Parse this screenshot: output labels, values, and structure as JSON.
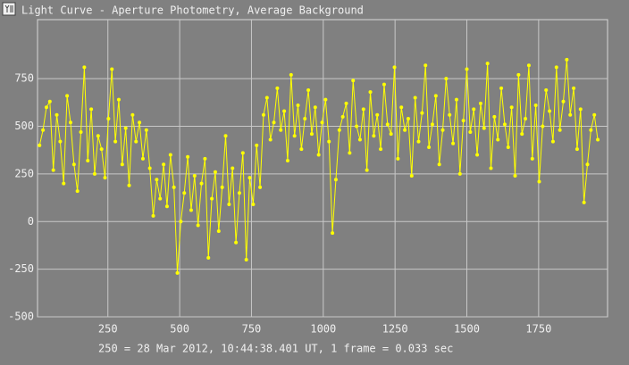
{
  "chart_data": {
    "type": "line",
    "title": "Light Curve - Aperture Photometry, Average Background",
    "annotation": "250 = 28 Mar 2012, 10:44:38.401 UT, 1 frame = 0.033 sec",
    "x": [
      12,
      24,
      36,
      48,
      60,
      72,
      84,
      96,
      108,
      120,
      132,
      144,
      156,
      168,
      180,
      192,
      204,
      216,
      228,
      240,
      252,
      264,
      276,
      288,
      300,
      312,
      324,
      336,
      348,
      360,
      372,
      384,
      396,
      408,
      420,
      432,
      444,
      456,
      468,
      480,
      492,
      504,
      516,
      528,
      540,
      552,
      564,
      576,
      588,
      600,
      612,
      624,
      636,
      648,
      660,
      672,
      684,
      696,
      708,
      720,
      732,
      744,
      756,
      768,
      780,
      792,
      804,
      816,
      828,
      840,
      852,
      864,
      876,
      888,
      900,
      912,
      924,
      936,
      948,
      960,
      972,
      984,
      996,
      1008,
      1020,
      1032,
      1044,
      1056,
      1068,
      1080,
      1092,
      1104,
      1116,
      1128,
      1140,
      1152,
      1164,
      1176,
      1188,
      1200,
      1212,
      1224,
      1236,
      1248,
      1260,
      1272,
      1284,
      1296,
      1308,
      1320,
      1332,
      1344,
      1356,
      1368,
      1380,
      1392,
      1404,
      1416,
      1428,
      1440,
      1452,
      1464,
      1476,
      1488,
      1500,
      1512,
      1524,
      1536,
      1548,
      1560,
      1572,
      1584,
      1596,
      1608,
      1620,
      1632,
      1644,
      1656,
      1668,
      1680,
      1692,
      1704,
      1716,
      1728,
      1740,
      1752,
      1764,
      1776,
      1788,
      1800,
      1812,
      1824,
      1836,
      1848,
      1860,
      1872,
      1884,
      1896,
      1908,
      1920,
      1932,
      1944,
      1956
    ],
    "series": [
      {
        "color": "#ffff00",
        "values": [
          400,
          480,
          600,
          630,
          270,
          560,
          420,
          200,
          660,
          520,
          300,
          160,
          470,
          810,
          320,
          590,
          250,
          450,
          380,
          230,
          540,
          800,
          420,
          640,
          300,
          490,
          190,
          560,
          420,
          520,
          330,
          480,
          280,
          30,
          220,
          120,
          300,
          80,
          350,
          180,
          -270,
          0,
          150,
          340,
          60,
          240,
          -20,
          200,
          330,
          -190,
          120,
          260,
          -50,
          180,
          450,
          90,
          280,
          -110,
          150,
          360,
          -200,
          230,
          90,
          400,
          180,
          560,
          650,
          430,
          520,
          700,
          480,
          580,
          320,
          770,
          450,
          610,
          380,
          540,
          690,
          460,
          600,
          350,
          520,
          640,
          420,
          -60,
          220,
          480,
          550,
          620,
          360,
          740,
          500,
          430,
          590,
          270,
          680,
          450,
          560,
          380,
          720,
          510,
          460,
          810,
          330,
          600,
          480,
          540,
          240,
          650,
          420,
          570,
          820,
          390,
          510,
          660,
          300,
          480,
          750,
          560,
          410,
          640,
          250,
          530,
          800,
          470,
          590,
          350,
          620,
          490,
          830,
          280,
          550,
          430,
          700,
          510,
          390,
          600,
          240,
          770,
          460,
          540,
          820,
          330,
          610,
          210,
          500,
          690,
          580,
          420,
          810,
          480,
          630,
          850,
          560,
          700,
          380,
          590,
          100,
          300,
          480,
          560,
          430
        ]
      }
    ],
    "xlim": [
      5,
      1990
    ],
    "ylim": [
      -500,
      1060
    ],
    "xticks": [
      250,
      500,
      750,
      1000,
      1250,
      1500,
      1750
    ],
    "yticks": [
      -500,
      -250,
      0,
      250,
      500,
      750
    ],
    "grid": true
  }
}
